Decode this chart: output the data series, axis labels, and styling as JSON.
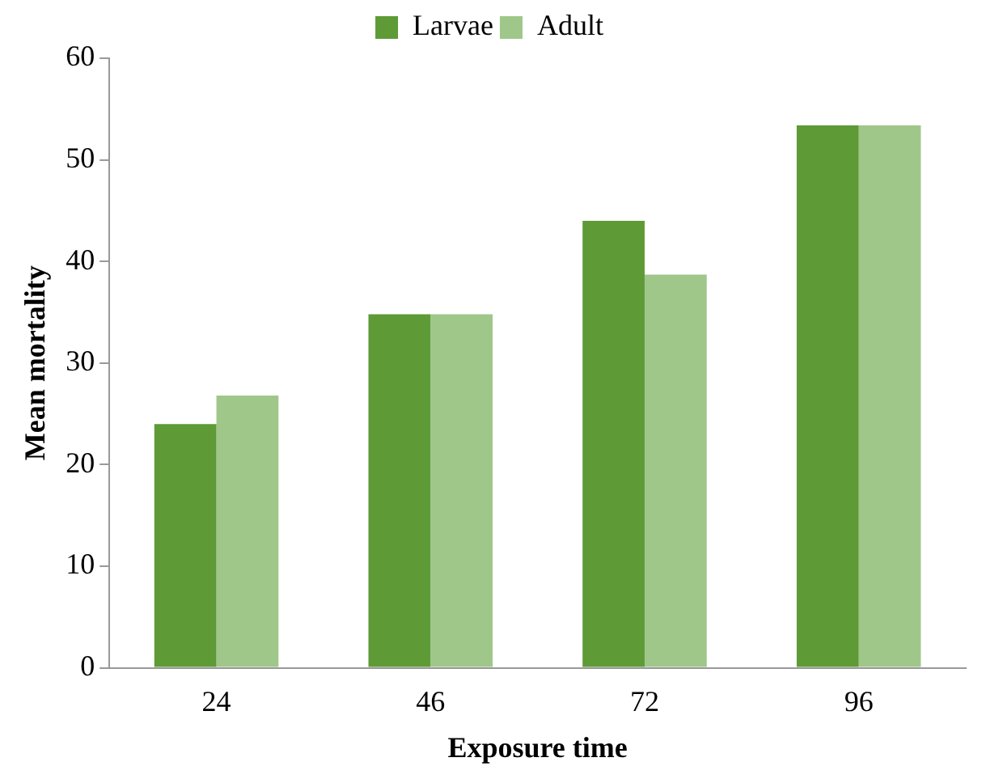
{
  "chart_data": {
    "type": "bar",
    "xlabel": "Exposure time",
    "ylabel": "Mean mortality",
    "categories": [
      "24",
      "46",
      "72",
      "96"
    ],
    "series": [
      {
        "name": "Larvae",
        "color": "#5e9a36",
        "values": [
          24,
          34.8,
          44,
          53.4
        ]
      },
      {
        "name": "Adult",
        "color": "#9fc78a",
        "values": [
          26.8,
          34.8,
          38.7,
          53.4
        ]
      }
    ],
    "ylim": [
      0,
      60
    ],
    "yticks": [
      0,
      10,
      20,
      30,
      40,
      50,
      60
    ],
    "grid": false,
    "legend": "top"
  }
}
